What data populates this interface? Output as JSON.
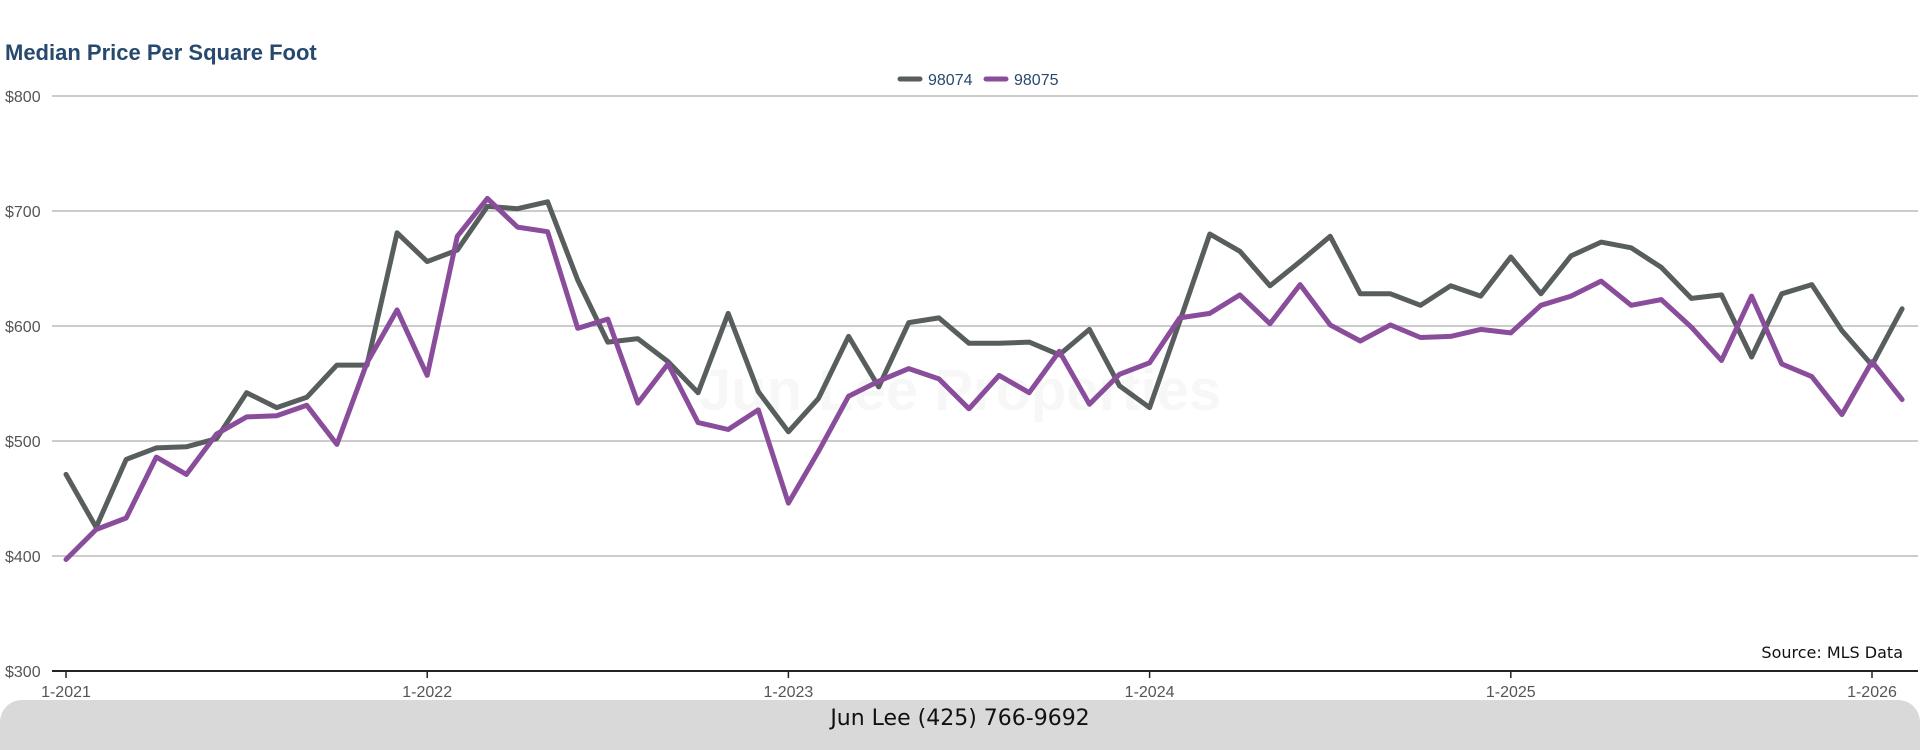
{
  "chart_data": {
    "type": "line",
    "title": "Median Price Per Square Foot",
    "xlabel": "",
    "ylabel": "",
    "ylim": [
      300,
      800
    ],
    "y_ticks": [
      "$800",
      "$700",
      "$600",
      "$500",
      "$400",
      "$300"
    ],
    "y_tick_values": [
      800,
      700,
      600,
      500,
      400,
      300
    ],
    "x_tick_labels": [
      "1-2021",
      "1-2022",
      "1-2023",
      "1-2024",
      "1-2025",
      "1-2026"
    ],
    "x_tick_indices": [
      0,
      12,
      24,
      36,
      48,
      60
    ],
    "grid": true,
    "legend_position": "top-center",
    "x": [
      "1-2021",
      "2-2021",
      "3-2021",
      "4-2021",
      "5-2021",
      "6-2021",
      "7-2021",
      "8-2021",
      "9-2021",
      "10-2021",
      "11-2021",
      "12-2021",
      "1-2022",
      "2-2022",
      "3-2022",
      "4-2022",
      "5-2022",
      "6-2022",
      "7-2022",
      "8-2022",
      "9-2022",
      "10-2022",
      "11-2022",
      "12-2022",
      "1-2023",
      "2-2023",
      "3-2023",
      "4-2023",
      "5-2023",
      "6-2023",
      "7-2023",
      "8-2023",
      "9-2023",
      "10-2023",
      "11-2023",
      "12-2023",
      "1-2024",
      "2-2024",
      "3-2024",
      "4-2024",
      "5-2024",
      "6-2024",
      "7-2024",
      "8-2024",
      "9-2024",
      "10-2024",
      "11-2024",
      "12-2024",
      "1-2025",
      "2-2025",
      "3-2025",
      "4-2025",
      "5-2025",
      "6-2025",
      "7-2025",
      "8-2025",
      "9-2025",
      "10-2025",
      "11-2025",
      "12-2025",
      "1-2026",
      "2-2026"
    ],
    "series": [
      {
        "name": "98074",
        "color": "#585e5e",
        "values": [
          471,
          425,
          484,
          494,
          495,
          502,
          542,
          529,
          538,
          566,
          566,
          681,
          656,
          666,
          704,
          702,
          708,
          640,
          586,
          589,
          569,
          542,
          611,
          543,
          508,
          537,
          591,
          547,
          603,
          607,
          585,
          585,
          586,
          575,
          597,
          548,
          529,
          604,
          680,
          665,
          635,
          656,
          678,
          628,
          628,
          618,
          635,
          626,
          660,
          628,
          661,
          673,
          668,
          651,
          624,
          627,
          573,
          628,
          636,
          596,
          566,
          615
        ]
      },
      {
        "name": "98075",
        "color": "#8a4d9c",
        "values": [
          397,
          423,
          433,
          486,
          471,
          506,
          521,
          522,
          531,
          497,
          568,
          614,
          557,
          678,
          711,
          686,
          682,
          598,
          606,
          533,
          567,
          516,
          510,
          527,
          446,
          491,
          539,
          552,
          563,
          554,
          528,
          557,
          542,
          578,
          532,
          558,
          568,
          607,
          611,
          627,
          602,
          636,
          601,
          587,
          601,
          590,
          591,
          597,
          594,
          618,
          626,
          639,
          618,
          623,
          599,
          570,
          626,
          567,
          556,
          523,
          569,
          536
        ]
      }
    ]
  },
  "source": "Source: MLS Data",
  "watermark": "Jun Lee Properties",
  "footer": {
    "contact": "Jun Lee (425) 766-9692"
  },
  "colors": {
    "title": "#27496d",
    "grid": "#bbbbbb",
    "axis": "#222222",
    "footer_bg": "#d9d9d9"
  }
}
